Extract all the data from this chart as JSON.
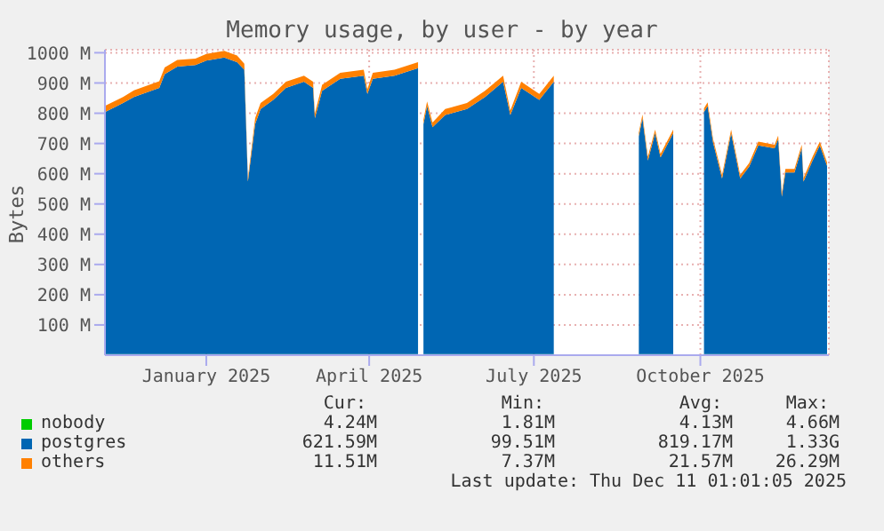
{
  "chart_data": {
    "type": "area",
    "stacked": true,
    "title": "Memory usage, by user - by year",
    "ylabel": "Bytes",
    "x": [
      "2024-11-06",
      "2024-11-16",
      "2024-11-22",
      "2024-12-06",
      "2024-12-09",
      "2024-12-16",
      "2024-12-26",
      "2025-01-01",
      "2025-01-11",
      "2025-01-18",
      "2025-01-22",
      "2025-01-24",
      "2025-01-28",
      "2025-01-31",
      "2025-02-07",
      "2025-02-14",
      "2025-02-24",
      "2025-03-01",
      "2025-03-02",
      "2025-03-06",
      "2025-03-16",
      "2025-03-29",
      "2025-03-31",
      "2025-04-03",
      "2025-04-15",
      "2025-04-28",
      "2025-04-29",
      "2025-05-01",
      "2025-05-03",
      "2025-05-06",
      "2025-05-13",
      "2025-05-25",
      "2025-06-04",
      "2025-06-14",
      "2025-06-18",
      "2025-06-24",
      "2025-07-04",
      "2025-07-12",
      "2025-07-13",
      "2025-08-28",
      "2025-08-30",
      "2025-09-02",
      "2025-09-06",
      "2025-09-09",
      "2025-09-16",
      "2025-09-17",
      "2025-10-03",
      "2025-10-05",
      "2025-10-08",
      "2025-10-13",
      "2025-10-18",
      "2025-10-23",
      "2025-10-28",
      "2025-11-02",
      "2025-11-11",
      "2025-11-13",
      "2025-11-15",
      "2025-11-17",
      "2025-11-22",
      "2025-11-26",
      "2025-11-27",
      "2025-12-02",
      "2025-12-06",
      "2025-12-10"
    ],
    "series": [
      {
        "name": "nobody",
        "color": "#00cc00",
        "values": [
          4,
          4,
          4,
          4,
          4,
          4,
          4,
          4,
          4,
          4,
          4,
          4,
          4,
          4,
          4,
          4,
          4,
          4,
          4,
          4,
          4,
          4,
          4,
          4,
          4,
          4,
          null,
          4,
          4,
          4,
          4,
          4,
          4,
          4,
          4,
          4,
          4,
          4,
          null,
          4,
          4,
          4,
          4,
          4,
          4,
          null,
          4,
          4,
          4,
          4,
          4,
          4,
          4,
          4,
          4,
          4,
          4,
          4,
          4,
          4,
          4,
          4,
          4,
          4
        ]
      },
      {
        "name": "postgres",
        "color": "#0066b3",
        "values": [
          800,
          830,
          850,
          880,
          925,
          950,
          955,
          970,
          980,
          965,
          940,
          570,
          760,
          810,
          840,
          880,
          900,
          880,
          780,
          870,
          910,
          920,
          860,
          910,
          920,
          945,
          null,
          760,
          820,
          750,
          790,
          810,
          850,
          900,
          790,
          880,
          840,
          900,
          null,
          720,
          780,
          640,
          730,
          650,
          730,
          null,
          800,
          820,
          700,
          580,
          730,
          580,
          620,
          690,
          680,
          710,
          520,
          600,
          600,
          680,
          570,
          640,
          690,
          622
        ]
      },
      {
        "name": "others",
        "color": "#ff8000",
        "values": [
          20,
          20,
          22,
          22,
          22,
          22,
          22,
          22,
          22,
          22,
          20,
          12,
          20,
          20,
          20,
          20,
          20,
          20,
          15,
          20,
          20,
          20,
          15,
          20,
          20,
          20,
          null,
          15,
          15,
          15,
          20,
          20,
          20,
          20,
          15,
          20,
          20,
          20,
          null,
          12,
          12,
          12,
          12,
          12,
          12,
          null,
          12,
          12,
          12,
          12,
          12,
          12,
          12,
          12,
          12,
          12,
          12,
          12,
          12,
          12,
          12,
          12,
          12,
          12
        ]
      }
    ],
    "xlim": [
      "2024-11-06",
      "2025-12-11"
    ],
    "xticks": [
      {
        "value": "2025-01-01",
        "label": "January 2025"
      },
      {
        "value": "2025-04-01",
        "label": "April 2025"
      },
      {
        "value": "2025-07-01",
        "label": "July 2025"
      },
      {
        "value": "2025-10-01",
        "label": "October 2025"
      }
    ],
    "ylim": [
      0,
      1010
    ],
    "yticks": [
      {
        "value": 100,
        "label": "100 M"
      },
      {
        "value": 200,
        "label": "200 M"
      },
      {
        "value": 300,
        "label": "300 M"
      },
      {
        "value": 400,
        "label": "400 M"
      },
      {
        "value": 500,
        "label": "500 M"
      },
      {
        "value": 600,
        "label": "600 M"
      },
      {
        "value": 700,
        "label": "700 M"
      },
      {
        "value": 800,
        "label": "800 M"
      },
      {
        "value": 900,
        "label": "900 M"
      },
      {
        "value": 1000,
        "label": "1000 M"
      }
    ],
    "grid": true,
    "legend": "bottom",
    "annotations": [
      "Cur:",
      "Min:",
      "Avg:",
      "Max:",
      "4.24M",
      "1.81M",
      "4.13M",
      "4.66M",
      "621.59M",
      "99.51M",
      "819.17M",
      "1.33G",
      "11.51M",
      "7.37M",
      "21.57M",
      "26.29M",
      "Last update: Thu Dec 11 01:01:05 2025"
    ]
  }
}
